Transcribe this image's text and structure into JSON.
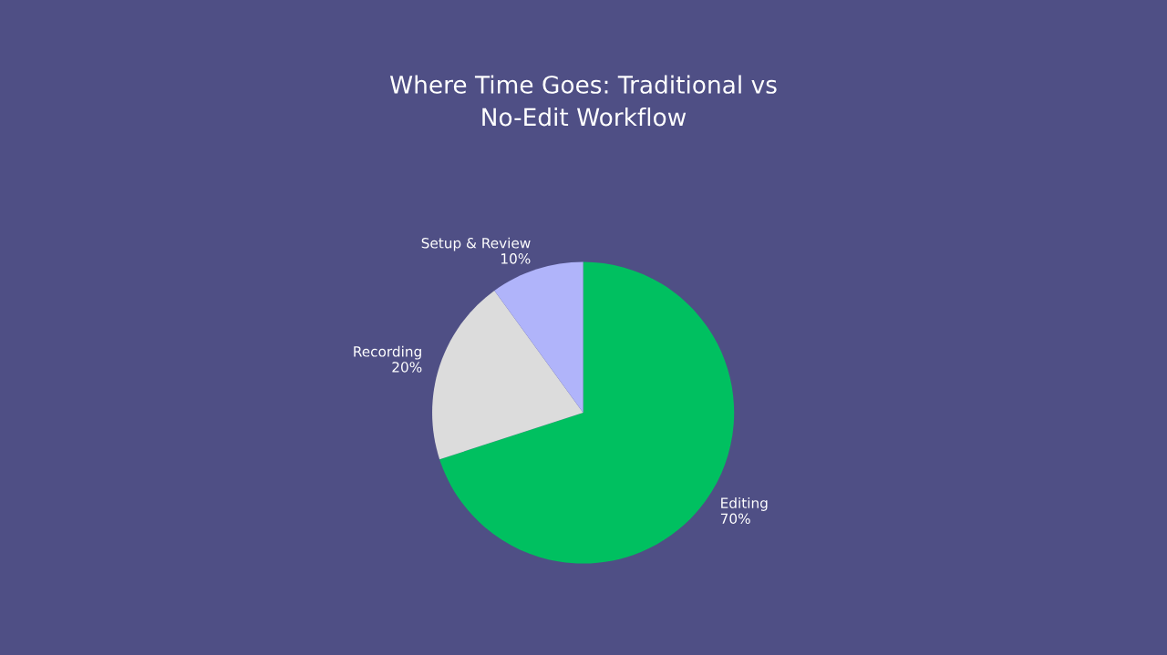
{
  "chart_data": {
    "type": "pie",
    "title": "Where Time Goes: Traditional vs\nNo-Edit Workflow",
    "categories": [
      "Editing",
      "Recording",
      "Setup & Review"
    ],
    "values": [
      70,
      20,
      10
    ],
    "value_labels": [
      "70%",
      "20%",
      "10%"
    ],
    "colors": [
      "#00c060",
      "#dcdcdc",
      "#b0b4fa"
    ]
  }
}
